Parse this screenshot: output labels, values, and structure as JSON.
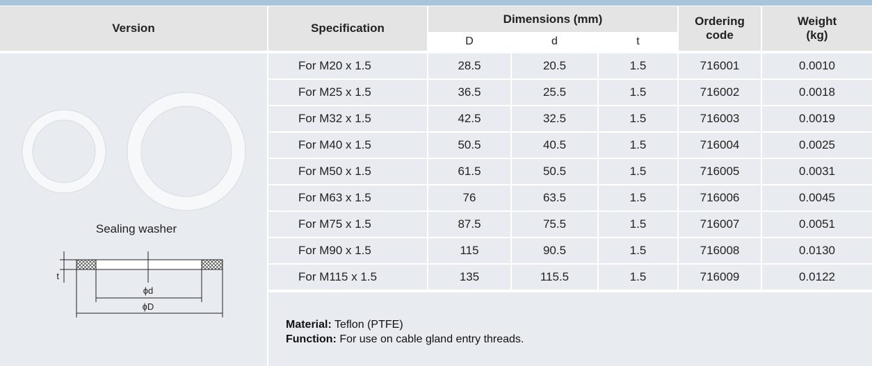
{
  "header": {
    "version": "Version",
    "specification": "Specification",
    "dimensions": "Dimensions (mm)",
    "D": "D",
    "d": "d",
    "t": "t",
    "ordering_code": "Ordering code",
    "weight": "Weight (kg)"
  },
  "version_cell": {
    "caption": "Sealing washer",
    "diagram": {
      "t": "t",
      "inner": "ϕd",
      "outer": "ϕD"
    }
  },
  "table": {
    "rows": [
      [
        "For  M20 x 1.5",
        "28.5",
        "20.5",
        "1.5",
        "716001",
        "0.0010"
      ],
      [
        "For  M25 x 1.5",
        "36.5",
        "25.5",
        "1.5",
        "716002",
        "0.0018"
      ],
      [
        "For  M32 x 1.5",
        "42.5",
        "32.5",
        "1.5",
        "716003",
        "0.0019"
      ],
      [
        "For  M40 x 1.5",
        "50.5",
        "40.5",
        "1.5",
        "716004",
        "0.0025"
      ],
      [
        "For  M50 x 1.5",
        "61.5",
        "50.5",
        "1.5",
        "716005",
        "0.0031"
      ],
      [
        "For  M63 x 1.5",
        "76",
        "63.5",
        "1.5",
        "716006",
        "0.0045"
      ],
      [
        "For  M75 x 1.5",
        "87.5",
        "75.5",
        "1.5",
        "716007",
        "0.0051"
      ],
      [
        "For  M90 x 1.5",
        "115",
        "90.5",
        "1.5",
        "716008",
        "0.0130"
      ],
      [
        "For  M115 x 1.5",
        "135",
        "115.5",
        "1.5",
        "716009",
        "0.0122"
      ]
    ]
  },
  "notes": {
    "material_label": "Material:",
    "material": "Teflon (PTFE)",
    "function_label": "Function:",
    "function": "For use on cable gland entry threads."
  }
}
